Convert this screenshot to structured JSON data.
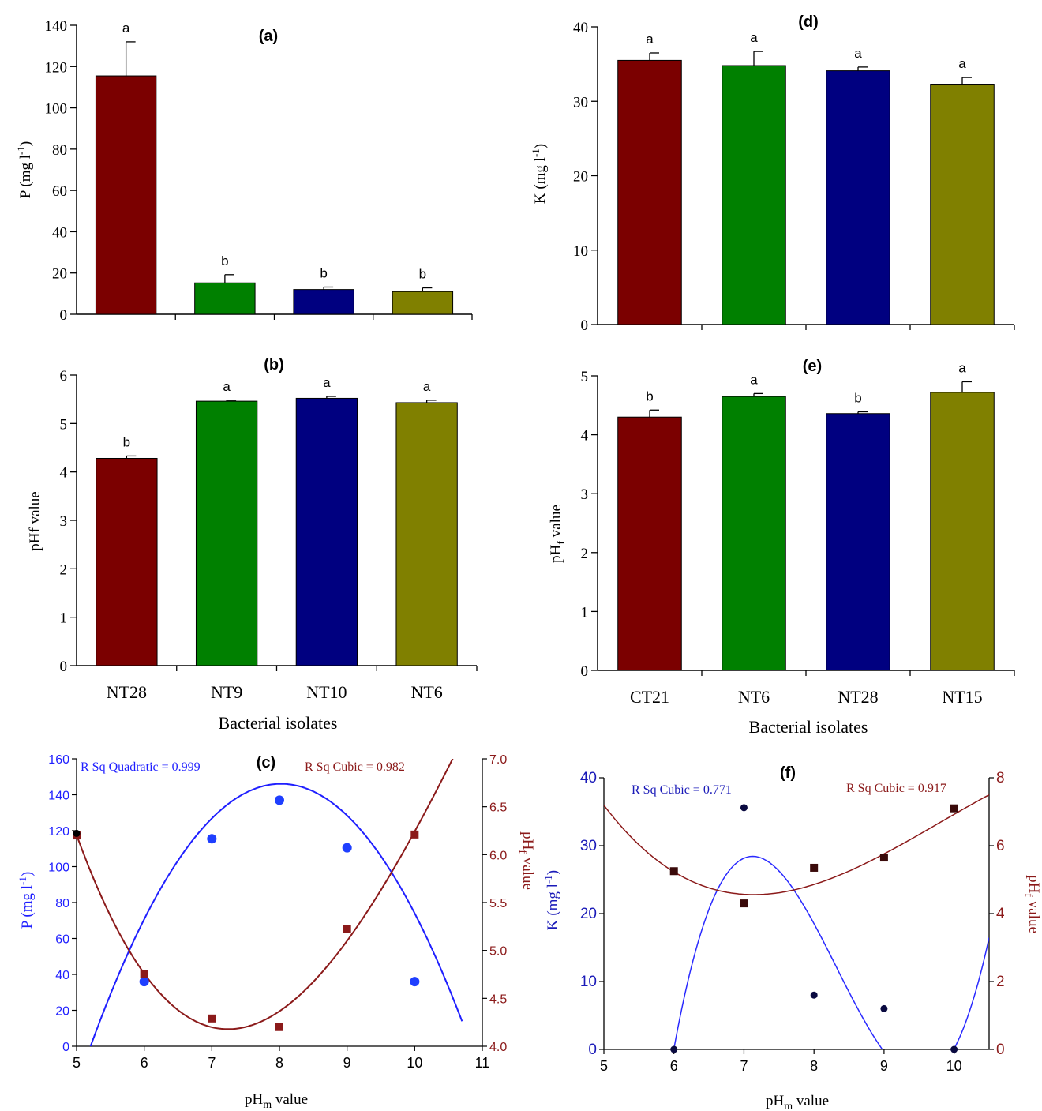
{
  "panels": {
    "a": {
      "label": "(a)",
      "ylabel_main": "P (mg l",
      "ylabel_sup": "-1",
      "ylabel_end": ")",
      "xlabel": ""
    },
    "b": {
      "label": "(b)",
      "ylabel_main": "pHf value",
      "xlabel": "Bacterial isolates"
    },
    "c": {
      "label": "(c)",
      "ylabel_left_main": "P (mg l",
      "ylabel_left_sup": "-1",
      "ylabel_left_end": ")",
      "ylabel_right_main": "pH",
      "ylabel_right_sub": "f",
      "ylabel_right_end": " value",
      "xlabel_main": "pH",
      "xlabel_sub": "m",
      "xlabel_end": " value",
      "rsq_left": "R Sq Quadratic = 0.999",
      "rsq_right": "R Sq Cubic = 0.982"
    },
    "d": {
      "label": "(d)",
      "ylabel_main": "K (mg l",
      "ylabel_sup": "-1",
      "ylabel_end": ")",
      "xlabel": ""
    },
    "e": {
      "label": "(e)",
      "ylabel_main": "pH",
      "ylabel_sub": "f",
      "ylabel_end": " value",
      "xlabel": "Bacterial isolates"
    },
    "f": {
      "label": "(f)",
      "ylabel_left_main": "K (mg l",
      "ylabel_left_sub": "-1",
      "ylabel_left_end": ")",
      "ylabel_right_main": "pH",
      "ylabel_right_sub": "f",
      "ylabel_right_end": " value",
      "xlabel_main": "pH",
      "xlabel_sub": "m",
      "xlabel_end": " value",
      "rsq_left": "R Sq Cubic = 0.771",
      "rsq_right": "R Sq Cubic = 0.917"
    }
  },
  "colors": {
    "maroon": "#7b0000",
    "green": "#008000",
    "navy": "#000080",
    "olive": "#808000",
    "blue": "#1f1fff",
    "darkred": "#8b1a1a"
  },
  "chart_data": [
    {
      "id": "a",
      "type": "bar",
      "categories": [
        "NT28",
        "NT9",
        "NT10",
        "NT6"
      ],
      "values": [
        115.5,
        15.2,
        12.0,
        11.0
      ],
      "errors": [
        16.5,
        4.0,
        1.2,
        1.8
      ],
      "letters": [
        "a",
        "b",
        "b",
        "b"
      ],
      "ylim": [
        0,
        140
      ],
      "yticks": [
        0,
        20,
        40,
        60,
        80,
        100,
        120,
        140
      ]
    },
    {
      "id": "b",
      "type": "bar",
      "categories": [
        "NT28",
        "NT9",
        "NT10",
        "NT6"
      ],
      "values": [
        4.28,
        5.46,
        5.52,
        5.43
      ],
      "errors": [
        0.05,
        0.02,
        0.04,
        0.05
      ],
      "letters": [
        "b",
        "a",
        "a",
        "a"
      ],
      "ylim": [
        0,
        6
      ],
      "yticks": [
        0,
        1,
        2,
        3,
        4,
        5,
        6
      ]
    },
    {
      "id": "c",
      "type": "scatter",
      "xlim": [
        5,
        11
      ],
      "xticks": [
        5,
        6,
        7,
        8,
        9,
        10,
        11
      ],
      "ylim_left": [
        0,
        160
      ],
      "yticks_left": [
        0,
        20,
        40,
        60,
        80,
        100,
        120,
        140,
        160
      ],
      "ylim_right": [
        4.0,
        7.0
      ],
      "yticks_right": [
        "4.0",
        "4.5",
        "5.0",
        "5.5",
        "6.0",
        "6.5",
        "7.0"
      ],
      "series": [
        {
          "name": "P",
          "axis": "left",
          "points": [
            [
              6,
              36
            ],
            [
              7,
              115.5
            ],
            [
              8,
              137
            ],
            [
              9,
              110.5
            ],
            [
              10,
              36
            ]
          ]
        },
        {
          "name": "pHf",
          "axis": "right",
          "points": [
            [
              5,
              6.2
            ],
            [
              6,
              4.75
            ],
            [
              7,
              4.29
            ],
            [
              8,
              4.2
            ],
            [
              9,
              5.22
            ],
            [
              10,
              6.21
            ]
          ]
        }
      ],
      "fits": [
        {
          "axis": "left",
          "kind": "quadratic",
          "coef": [
            -1040.0,
            295.7,
            -18.43
          ],
          "x_range": [
            5.0,
            10.7
          ]
        },
        {
          "axis": "right",
          "kind": "cubic",
          "points": [
            [
              5,
              6.2
            ],
            [
              6,
              4.75
            ],
            [
              7,
              4.29
            ],
            [
              8,
              4.2
            ],
            [
              9,
              5.22
            ],
            [
              10,
              6.21
            ]
          ],
          "x_range": [
            5.0,
            10.7
          ]
        }
      ]
    },
    {
      "id": "d",
      "type": "bar",
      "categories": [
        "CT21",
        "NT6",
        "NT28",
        "NT15"
      ],
      "values": [
        35.5,
        34.8,
        34.1,
        32.2
      ],
      "errors": [
        1.0,
        1.9,
        0.5,
        1.0
      ],
      "letters": [
        "a",
        "a",
        "a",
        "a"
      ],
      "ylim": [
        0,
        40
      ],
      "yticks": [
        0,
        10,
        20,
        30,
        40
      ]
    },
    {
      "id": "e",
      "type": "bar",
      "categories": [
        "CT21",
        "NT6",
        "NT28",
        "NT15"
      ],
      "values": [
        4.3,
        4.65,
        4.36,
        4.72
      ],
      "errors": [
        0.12,
        0.05,
        0.03,
        0.18
      ],
      "letters": [
        "b",
        "a",
        "b",
        "a"
      ],
      "ylim": [
        0,
        5
      ],
      "yticks": [
        0,
        1,
        2,
        3,
        4,
        5
      ]
    },
    {
      "id": "f",
      "type": "scatter",
      "xlim": [
        5,
        10.5
      ],
      "xticks": [
        5,
        6,
        7,
        8,
        9,
        10
      ],
      "ylim_left": [
        0,
        40
      ],
      "yticks_left": [
        0,
        10,
        20,
        30,
        40
      ],
      "ylim_right": [
        0,
        8
      ],
      "yticks_right": [
        0,
        2,
        4,
        6,
        8
      ],
      "series": [
        {
          "name": "K",
          "axis": "left",
          "points": [
            [
              6,
              0
            ],
            [
              7,
              35.6
            ],
            [
              8,
              8.0
            ],
            [
              9,
              6.0
            ],
            [
              10,
              0
            ]
          ]
        },
        {
          "name": "pHf",
          "axis": "right",
          "points": [
            [
              6,
              5.25
            ],
            [
              7,
              4.3
            ],
            [
              8,
              5.35
            ],
            [
              9,
              5.65
            ],
            [
              10,
              7.1
            ]
          ]
        }
      ],
      "fits": [
        {
          "axis": "left",
          "kind": "cubic",
          "points": [
            [
              6,
              0
            ],
            [
              7,
              28.5
            ],
            [
              8,
              18.0
            ],
            [
              9,
              0
            ],
            [
              10,
              0
            ]
          ],
          "x_range": [
            6.0,
            10.5
          ]
        },
        {
          "axis": "right",
          "kind": "cubic",
          "points": [
            [
              5,
              7.2
            ],
            [
              6,
              5.2
            ],
            [
              7,
              4.6
            ],
            [
              8,
              4.85
            ],
            [
              9,
              5.75
            ],
            [
              10.5,
              7.5
            ]
          ],
          "x_range": [
            5.0,
            10.5
          ]
        }
      ]
    }
  ]
}
